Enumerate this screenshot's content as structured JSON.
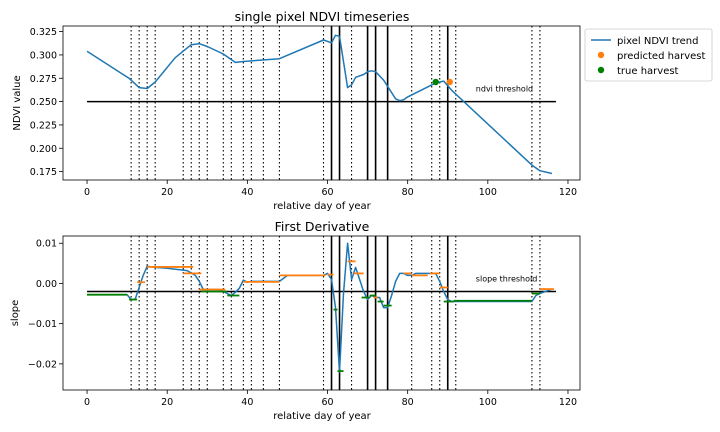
{
  "chart_data": [
    {
      "type": "line",
      "title": "single pixel NDVI timeseries",
      "xlabel": "relative day of year",
      "ylabel": "NDVI value",
      "xlim": [
        -6,
        123
      ],
      "ylim": [
        0.166,
        0.331
      ],
      "xticks": [
        0,
        20,
        40,
        60,
        80,
        100,
        120
      ],
      "yticks": [
        0.175,
        0.2,
        0.225,
        0.25,
        0.275,
        0.3,
        0.325
      ],
      "ytick_labels": [
        "0.175",
        "0.200",
        "0.225",
        "0.250",
        "0.275",
        "0.300",
        "0.325"
      ],
      "legend_position": "outside top-right",
      "legend": [
        {
          "label": "pixel NDVI trend",
          "marker": "line",
          "color": "#1f77b4"
        },
        {
          "label": "predicted harvest",
          "marker": "dot",
          "color": "#ff7f0e"
        },
        {
          "label": "true harvest",
          "marker": "dot",
          "color": "#008000"
        }
      ],
      "series": [
        {
          "name": "pixel NDVI trend",
          "color": "#1f77b4",
          "x": [
            0,
            10.5,
            13,
            15,
            17,
            22,
            26,
            28,
            30,
            34,
            37,
            39,
            48,
            59,
            61,
            62,
            63,
            65,
            66,
            67,
            69,
            70,
            71,
            72,
            74,
            77,
            78,
            79,
            80,
            87,
            89,
            91,
            111,
            113,
            116
          ],
          "y": [
            0.304,
            0.275,
            0.265,
            0.264,
            0.271,
            0.297,
            0.311,
            0.312,
            0.309,
            0.301,
            0.292,
            0.293,
            0.296,
            0.316,
            0.313,
            0.321,
            0.32,
            0.265,
            0.268,
            0.276,
            0.279,
            0.282,
            0.283,
            0.282,
            0.273,
            0.253,
            0.251,
            0.252,
            0.255,
            0.27,
            0.272,
            0.262,
            0.182,
            0.176,
            0.173
          ]
        }
      ],
      "hlines": [
        {
          "y": 0.25,
          "x": [
            0,
            117
          ],
          "label": "ndvi threshold",
          "label_x": 97
        }
      ],
      "points": [
        {
          "series": "predicted harvest",
          "x": 90.5,
          "y": 0.271,
          "color": "#ff7f0e"
        },
        {
          "series": "true harvest",
          "x": 87,
          "y": 0.271,
          "color": "#008000"
        }
      ],
      "dotted_vlines": [
        11,
        13,
        15,
        17,
        24,
        26,
        28,
        30,
        34,
        36,
        39,
        41,
        44,
        48,
        59,
        66,
        81,
        86,
        88,
        90,
        92,
        111,
        113
      ],
      "solid_vlines": [
        61,
        63,
        70,
        72,
        75,
        90
      ]
    },
    {
      "type": "line",
      "title": "First Derivative",
      "xlabel": "relative day of year",
      "ylabel": "slope",
      "xlim": [
        -6,
        123
      ],
      "ylim": [
        -0.0265,
        0.0118
      ],
      "xticks": [
        0,
        20,
        40,
        60,
        80,
        100,
        120
      ],
      "yticks": [
        -0.02,
        -0.01,
        0.0,
        0.01
      ],
      "ytick_labels": [
        "−0.02",
        "−0.01",
        "0.00",
        "0.01"
      ],
      "series": [
        {
          "name": "",
          "color": "#1f77b4",
          "x": [
            0,
            10,
            11,
            12,
            13,
            14,
            15,
            17,
            20,
            25,
            27,
            28,
            29,
            33,
            35,
            36,
            37,
            38,
            39,
            40,
            41,
            42,
            48,
            50,
            59,
            60,
            61,
            62,
            63,
            64,
            65,
            66,
            67,
            68,
            69,
            70,
            71,
            72,
            73,
            74,
            75,
            76,
            77,
            78,
            79,
            80,
            81,
            82,
            87,
            88,
            89,
            90,
            91,
            111,
            112,
            113,
            116
          ],
          "y": [
            -0.0028,
            -0.0028,
            -0.004,
            -0.004,
            -0.001,
            0.002,
            0.0043,
            0.004,
            0.0038,
            0.0032,
            0.002,
            0.0005,
            -0.0015,
            -0.0015,
            -0.0025,
            -0.003,
            -0.0022,
            -0.0012,
            0.0008,
            0.0003,
            0.0005,
            0.0005,
            0.0005,
            0.002,
            0.002,
            0.0025,
            0.001,
            -0.006,
            -0.022,
            -0.0025,
            0.01,
            0.001,
            0.004,
            0.001,
            -0.002,
            -0.004,
            -0.003,
            -0.0035,
            -0.0035,
            -0.006,
            -0.006,
            -0.003,
            0.0005,
            0.0025,
            0.0025,
            0.002,
            0.002,
            0.0025,
            0.0025,
            0.0005,
            -0.002,
            -0.004,
            -0.0045,
            -0.0045,
            -0.003,
            -0.0025,
            -0.0014
          ]
        },
        {
          "name": "",
          "color": "#ff7f0e",
          "segments": [
            {
              "x": [
                12.5,
                14.5
              ],
              "y": 0.0003
            },
            {
              "x": [
                15,
                26.5
              ],
              "y": 0.0041
            },
            {
              "x": [
                24,
                28.5
              ],
              "y": 0.0025
            },
            {
              "x": [
                28,
                34.5
              ],
              "y": -0.0015
            },
            {
              "x": [
                39,
                48
              ],
              "y": 0.0004
            },
            {
              "x": [
                48,
                59.5
              ],
              "y": 0.002
            },
            {
              "x": [
                60,
                61.5
              ],
              "y": 0.0022
            },
            {
              "x": [
                65,
                67
              ],
              "y": 0.0055
            },
            {
              "x": [
                66.5,
                69
              ],
              "y": 0.0025
            },
            {
              "x": [
                71.5,
                72.5
              ],
              "y": -0.0035
            },
            {
              "x": [
                79,
                81
              ],
              "y": 0.0025
            },
            {
              "x": [
                81,
                85
              ],
              "y": 0.002
            },
            {
              "x": [
                85.5,
                88
              ],
              "y": 0.0025
            },
            {
              "x": [
                88,
                90
              ],
              "y": -0.001
            },
            {
              "x": [
                111,
                112.5
              ],
              "y": -0.0025
            },
            {
              "x": [
                113,
                116.5
              ],
              "y": -0.0014
            }
          ]
        },
        {
          "name": "",
          "color": "#008000",
          "segments": [
            {
              "x": [
                0,
                10
              ],
              "y": -0.0028
            },
            {
              "x": [
                10.5,
                12.5
              ],
              "y": -0.004
            },
            {
              "x": [
                28.5,
                35
              ],
              "y": -0.002
            },
            {
              "x": [
                35,
                38
              ],
              "y": -0.003
            },
            {
              "x": [
                61.5,
                62.5
              ],
              "y": -0.0065
            },
            {
              "x": [
                62.5,
                64
              ],
              "y": -0.0218
            },
            {
              "x": [
                68.5,
                70.5
              ],
              "y": -0.0035
            },
            {
              "x": [
                70.5,
                72
              ],
              "y": -0.003
            },
            {
              "x": [
                72.5,
                74
              ],
              "y": -0.0045
            },
            {
              "x": [
                74,
                76
              ],
              "y": -0.0055
            },
            {
              "x": [
                89,
                91.5
              ],
              "y": -0.0045
            },
            {
              "x": [
                91.5,
                111
              ],
              "y": -0.0043
            },
            {
              "x": [
                111,
                113
              ],
              "y": -0.0025
            }
          ]
        }
      ],
      "hlines": [
        {
          "y": -0.002,
          "x": [
            0,
            117
          ],
          "label": "slope threshold",
          "label_x": 97
        }
      ],
      "dotted_vlines": [
        11,
        13,
        15,
        17,
        24,
        26,
        28,
        30,
        34,
        36,
        39,
        41,
        44,
        48,
        59,
        66,
        81,
        86,
        88,
        90,
        92,
        111,
        113
      ],
      "solid_vlines": [
        61,
        63,
        70,
        72,
        75,
        90
      ]
    }
  ]
}
